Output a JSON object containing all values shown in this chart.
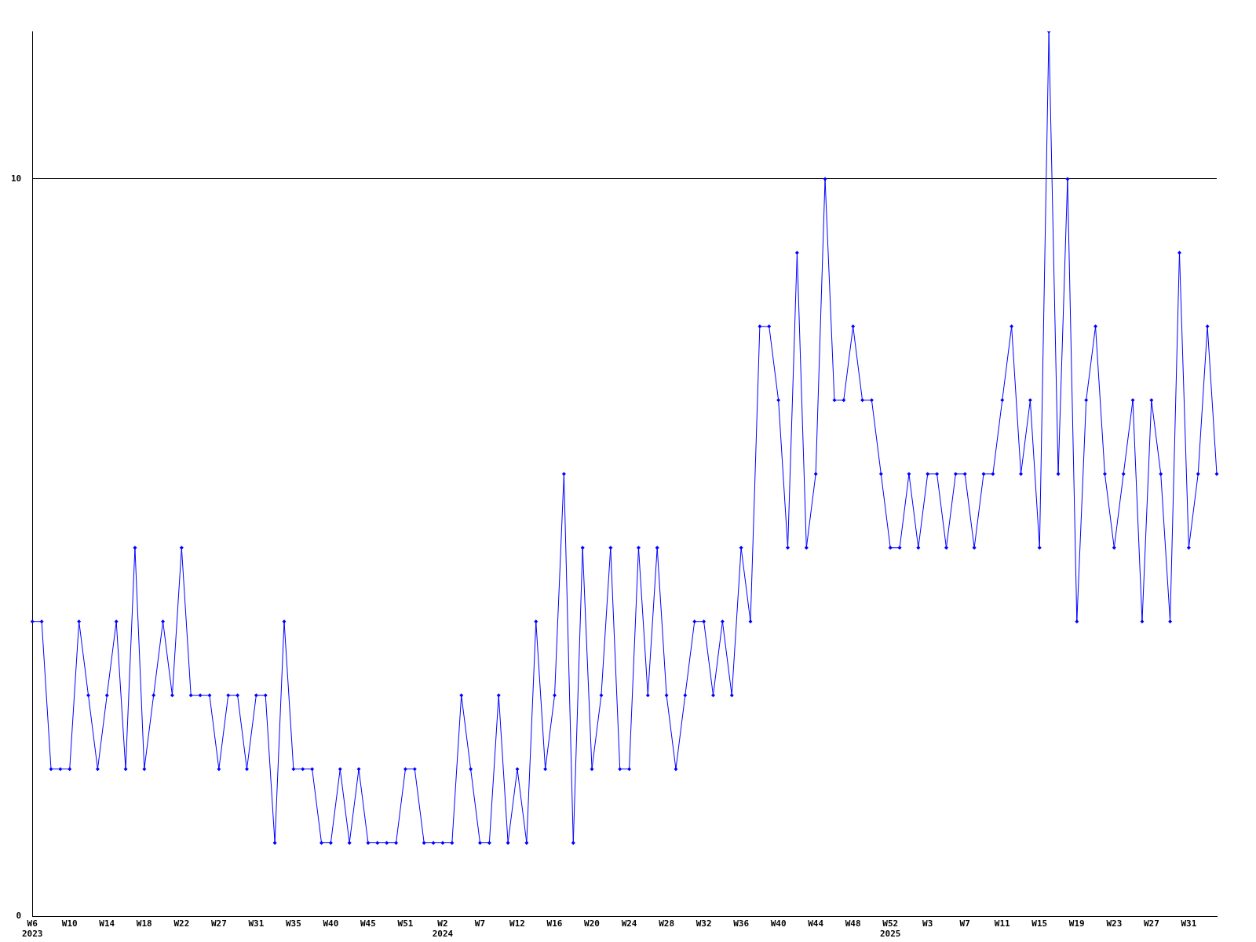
{
  "chart_data": {
    "type": "line",
    "categories": [
      "W6\n2023",
      null,
      null,
      null,
      "W10",
      null,
      null,
      null,
      "W14",
      null,
      null,
      null,
      "W18",
      null,
      null,
      null,
      "W22",
      null,
      null,
      null,
      "W27",
      null,
      null,
      null,
      "W31",
      null,
      null,
      null,
      "W35",
      null,
      null,
      null,
      "W40",
      null,
      null,
      null,
      "W45",
      null,
      null,
      null,
      "W51",
      null,
      null,
      null,
      "W2\n2024",
      null,
      null,
      null,
      "W7",
      null,
      null,
      null,
      "W12",
      null,
      null,
      null,
      "W16",
      null,
      null,
      null,
      "W20",
      null,
      null,
      null,
      "W24",
      null,
      null,
      null,
      "W28",
      null,
      null,
      null,
      "W32",
      null,
      null,
      null,
      "W36",
      null,
      null,
      null,
      "W40",
      null,
      null,
      null,
      "W44",
      null,
      null,
      null,
      "W48",
      null,
      null,
      null,
      "W52\n2025",
      null,
      null,
      null,
      "W3",
      null,
      null,
      null,
      "W7",
      null,
      null,
      null,
      "W11",
      null,
      null,
      null,
      "W15",
      null,
      null,
      null,
      "W19",
      null,
      null,
      null,
      "W23",
      null,
      null,
      null,
      "W27",
      null,
      null,
      null,
      "W31",
      null,
      null,
      null
    ],
    "series": [
      {
        "color": "#0000ff",
        "values": [
          4,
          4,
          2,
          2,
          2,
          4,
          3,
          2,
          3,
          4,
          2,
          5,
          2,
          3,
          4,
          3,
          5,
          3,
          3,
          3,
          2,
          3,
          3,
          2,
          3,
          3,
          1,
          4,
          2,
          2,
          2,
          1,
          1,
          2,
          1,
          2,
          1,
          1,
          1,
          1,
          2,
          2,
          1,
          1,
          1,
          1,
          3,
          2,
          1,
          1,
          3,
          1,
          2,
          1,
          4,
          2,
          3,
          6,
          1,
          5,
          2,
          3,
          5,
          2,
          2,
          5,
          3,
          5,
          3,
          2,
          3,
          4,
          4,
          3,
          4,
          3,
          5,
          4,
          8,
          8,
          7,
          5,
          9,
          5,
          6,
          10,
          7,
          7,
          8,
          7,
          7,
          6,
          5,
          5,
          6,
          5,
          6,
          6,
          5,
          6,
          6,
          5,
          6,
          6,
          7,
          8,
          6,
          7,
          5,
          12,
          6,
          10,
          4,
          7,
          8,
          6,
          5,
          6,
          7,
          4,
          7,
          6,
          4,
          9,
          5,
          6,
          8,
          6
        ]
      }
    ],
    "ylim": [
      0,
      12
    ],
    "yticks": [
      0,
      10
    ],
    "grid": "y",
    "marker": "diamond",
    "line_style": "solid",
    "legend": false
  }
}
